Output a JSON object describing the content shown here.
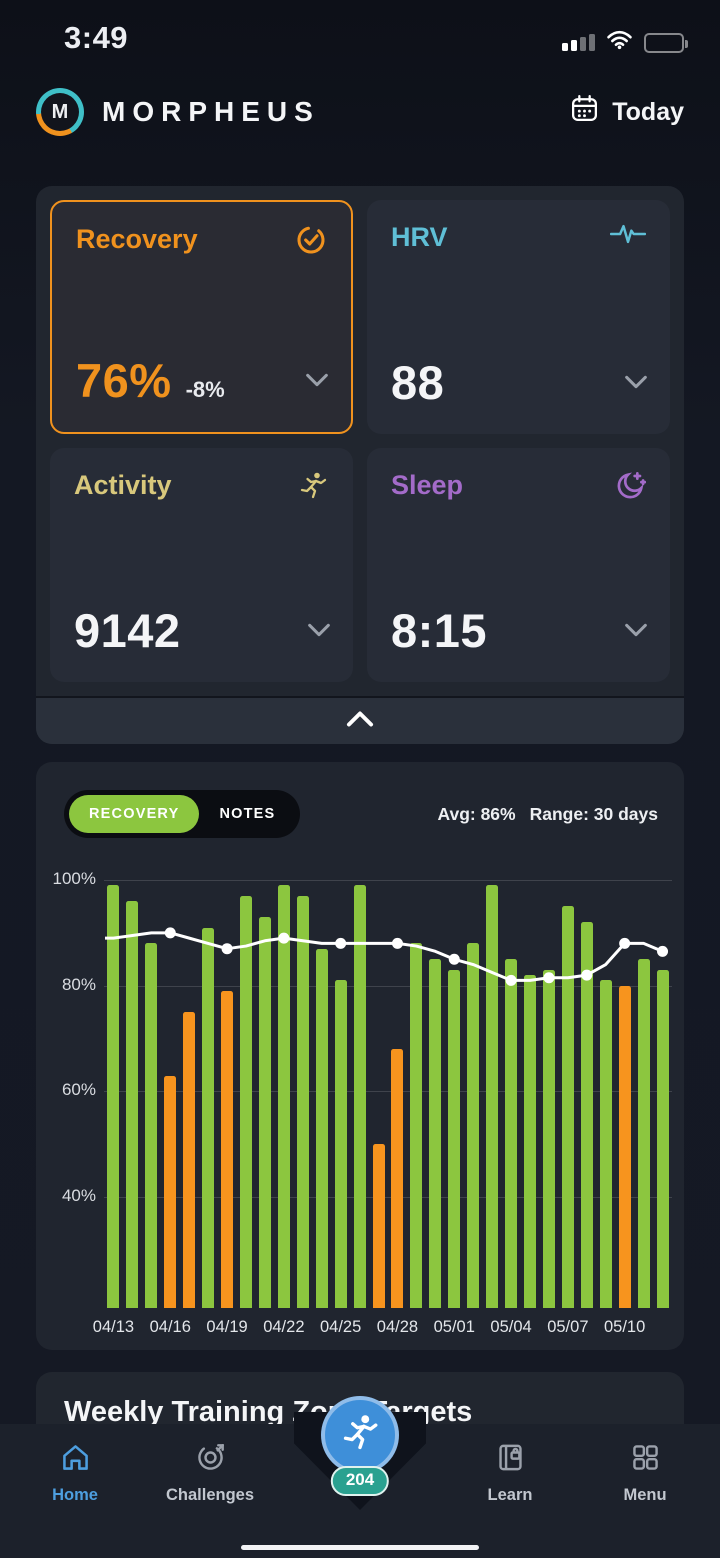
{
  "status_bar": {
    "time": "3:49",
    "icons": [
      "cellular-signal-icon",
      "wifi-icon",
      "battery-icon"
    ]
  },
  "header": {
    "logo_letter": "M",
    "app_name": "MORPHEUS",
    "date_button": {
      "label": "Today",
      "icon": "calendar-icon"
    }
  },
  "metric_cards": [
    {
      "id": "recovery",
      "label": "Recovery",
      "value": "76%",
      "delta": "-8%",
      "icon": "check-circle-icon",
      "color": "#F0921E",
      "selected": true
    },
    {
      "id": "hrv",
      "label": "HRV",
      "value": "88",
      "icon": "pulse-waveform-icon",
      "color": "#5FBFD6",
      "selected": false
    },
    {
      "id": "activity",
      "label": "Activity",
      "value": "9142",
      "icon": "runner-icon",
      "color": "#D8C87C",
      "selected": false
    },
    {
      "id": "sleep",
      "label": "Sleep",
      "value": "8:15",
      "icon": "moon-stars-icon",
      "color": "#A36BC9",
      "selected": false
    }
  ],
  "collapse": {
    "icon": "chevron-up-icon"
  },
  "chart_section": {
    "tabs": [
      {
        "label": "RECOVERY",
        "active": true,
        "active_color": "#8CC63F"
      },
      {
        "label": "NOTES",
        "active": false
      }
    ],
    "avg_label": "Avg: 86%",
    "range_label": "Range: 30 days"
  },
  "chart_data": {
    "type": "bar",
    "ylim": [
      19,
      100
    ],
    "grid": true,
    "y_ticks": [
      {
        "label": "100%",
        "value": 100
      },
      {
        "label": "80%",
        "value": 80
      },
      {
        "label": "60%",
        "value": 60
      },
      {
        "label": "40%",
        "value": 40
      }
    ],
    "bars": [
      {
        "date": "04/13",
        "value": 99,
        "color": "green"
      },
      {
        "date": "04/14",
        "value": 96,
        "color": "green"
      },
      {
        "date": "04/15",
        "value": 88,
        "color": "green"
      },
      {
        "date": "04/16",
        "value": 63,
        "color": "orange"
      },
      {
        "date": "04/17",
        "value": 75,
        "color": "orange"
      },
      {
        "date": "04/18",
        "value": 91,
        "color": "green"
      },
      {
        "date": "04/19",
        "value": 79,
        "color": "orange"
      },
      {
        "date": "04/20",
        "value": 97,
        "color": "green"
      },
      {
        "date": "04/21",
        "value": 93,
        "color": "green"
      },
      {
        "date": "04/22",
        "value": 99,
        "color": "green"
      },
      {
        "date": "04/23",
        "value": 97,
        "color": "green"
      },
      {
        "date": "04/24",
        "value": 87,
        "color": "green"
      },
      {
        "date": "04/25",
        "value": 81,
        "color": "green"
      },
      {
        "date": "04/26",
        "value": 99,
        "color": "green"
      },
      {
        "date": "04/27",
        "value": 50,
        "color": "orange"
      },
      {
        "date": "04/28",
        "value": 68,
        "color": "orange"
      },
      {
        "date": "04/29",
        "value": 88,
        "color": "green"
      },
      {
        "date": "04/30",
        "value": 85,
        "color": "green"
      },
      {
        "date": "05/01",
        "value": 83,
        "color": "green"
      },
      {
        "date": "05/02",
        "value": 88,
        "color": "green"
      },
      {
        "date": "05/03",
        "value": 99,
        "color": "green"
      },
      {
        "date": "05/04",
        "value": 85,
        "color": "green"
      },
      {
        "date": "05/05",
        "value": 82,
        "color": "green"
      },
      {
        "date": "05/06",
        "value": 83,
        "color": "green"
      },
      {
        "date": "05/07",
        "value": 95,
        "color": "green"
      },
      {
        "date": "05/08",
        "value": 92,
        "color": "green"
      },
      {
        "date": "05/09",
        "value": 81,
        "color": "green"
      },
      {
        "date": "05/10",
        "value": 80,
        "color": "orange"
      },
      {
        "date": "05/11",
        "value": 85,
        "color": "green"
      },
      {
        "date": "05/12",
        "value": 83,
        "color": "green"
      }
    ],
    "line": {
      "name": "trend",
      "values": [
        89,
        89.5,
        90,
        90,
        89,
        88,
        87,
        87.5,
        88.5,
        89,
        88.5,
        88,
        88,
        88,
        88,
        88,
        87.5,
        86.5,
        85,
        84,
        82.5,
        81,
        81,
        81.5,
        81.5,
        82,
        84,
        88,
        88,
        86.5
      ],
      "dot_indices": [
        3,
        6,
        9,
        12,
        15,
        18,
        21,
        23,
        25,
        27,
        29
      ]
    },
    "x_ticks": {
      "labels": [
        "04/13",
        "04/16",
        "04/19",
        "04/22",
        "04/25",
        "04/28",
        "05/01",
        "05/04",
        "05/07",
        "05/10"
      ],
      "indices": [
        0,
        3,
        6,
        9,
        12,
        15,
        18,
        21,
        24,
        27
      ]
    },
    "palette": {
      "green": "#8CC63F",
      "orange": "#F7941E",
      "line": "#FFFFFF"
    }
  },
  "weekly_card": {
    "title": "Weekly Training Zone Targets"
  },
  "bottom_nav": {
    "items": [
      {
        "label": "Home",
        "icon": "home-icon",
        "active": true,
        "active_color": "#4D9EDF"
      },
      {
        "label": "Challenges",
        "icon": "target-icon",
        "active": false
      },
      {
        "label": "Learn",
        "icon": "journal-lock-icon",
        "active": false
      },
      {
        "label": "Menu",
        "icon": "grid-menu-icon",
        "active": false
      }
    ],
    "fab": {
      "icon": "runner-icon",
      "badge": "204",
      "color": "#3E8FD9",
      "badge_color": "#2AA190"
    }
  }
}
